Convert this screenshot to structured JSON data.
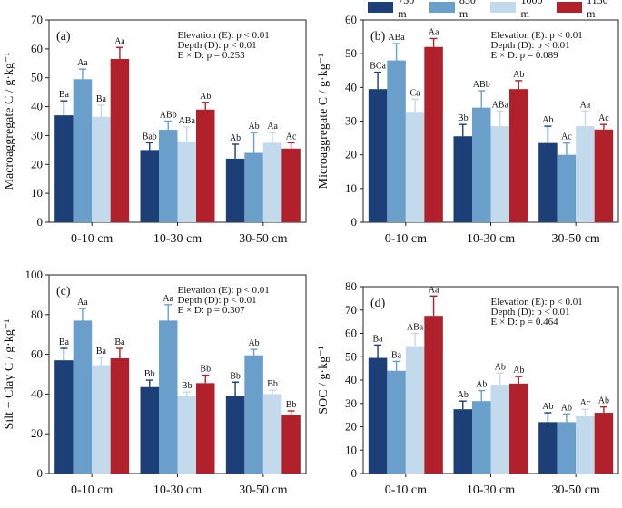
{
  "legend": {
    "items": [
      {
        "label": "750 m",
        "color": "#1b3f76"
      },
      {
        "label": "850 m",
        "color": "#6a9fcc"
      },
      {
        "label": "1000 m",
        "color": "#c3d9ec"
      },
      {
        "label": "1150 m",
        "color": "#b0212b"
      }
    ]
  },
  "chart_data": [
    {
      "type": "bar",
      "panel": "(a)",
      "ylabel": "Macroaggregate C / g·kg⁻¹",
      "categories": [
        "0-10 cm",
        "10-30 cm",
        "30-50 cm"
      ],
      "ylim": [
        0,
        70
      ],
      "yticks": [
        0,
        10,
        20,
        30,
        40,
        50,
        60,
        70
      ],
      "stats": [
        "Elevation (E): p < 0.01",
        "Depth (D): p < 0.01",
        "E × D: p = 0.253"
      ],
      "series": [
        {
          "name": "750 m",
          "values": [
            37,
            25,
            22
          ],
          "errors": [
            5,
            2.5,
            5
          ],
          "labels": [
            "Ba",
            "Bab",
            "Ab"
          ]
        },
        {
          "name": "850 m",
          "values": [
            49.5,
            32,
            24
          ],
          "errors": [
            3.5,
            3,
            7
          ],
          "labels": [
            "Aa",
            "ABb",
            "Ab"
          ]
        },
        {
          "name": "1000 m",
          "values": [
            36.5,
            28,
            27.5
          ],
          "errors": [
            4,
            5,
            3.5
          ],
          "labels": [
            "Ba",
            "ABa",
            "Aa"
          ]
        },
        {
          "name": "1150 m",
          "values": [
            56.5,
            39,
            25.5
          ],
          "errors": [
            4,
            2.5,
            2
          ],
          "labels": [
            "Aa",
            "Ab",
            "Ac"
          ]
        }
      ]
    },
    {
      "type": "bar",
      "panel": "(b)",
      "ylabel": "Microaggregate C / g·kg⁻¹",
      "categories": [
        "0-10 cm",
        "10-30 cm",
        "30-50 cm"
      ],
      "ylim": [
        0,
        60
      ],
      "yticks": [
        0,
        10,
        20,
        30,
        40,
        50,
        60
      ],
      "stats": [
        "Elevation (E): p < 0.01",
        "Depth (D): p < 0.01",
        "E × D: p = 0.089"
      ],
      "series": [
        {
          "name": "750 m",
          "values": [
            39.5,
            25.5,
            23.5
          ],
          "errors": [
            5,
            3.5,
            5
          ],
          "labels": [
            "BCa",
            "Bb",
            "Ab"
          ]
        },
        {
          "name": "850 m",
          "values": [
            48,
            34,
            20
          ],
          "errors": [
            5,
            5,
            3.5
          ],
          "labels": [
            "ABa",
            "ABb",
            "Ac"
          ]
        },
        {
          "name": "1000 m",
          "values": [
            32.5,
            28.5,
            28.5
          ],
          "errors": [
            4,
            4.5,
            4.5
          ],
          "labels": [
            "Ca",
            "ABa",
            "Aa"
          ]
        },
        {
          "name": "1150 m",
          "values": [
            52,
            39.5,
            27.5
          ],
          "errors": [
            2.5,
            2.5,
            1.5
          ],
          "labels": [
            "Aa",
            "Ab",
            "Ac"
          ]
        }
      ]
    },
    {
      "type": "bar",
      "panel": "(c)",
      "ylabel": "Silt + Clay C / g·kg⁻¹",
      "categories": [
        "0-10 cm",
        "10-30 cm",
        "30-50 cm"
      ],
      "ylim": [
        0,
        100
      ],
      "yticks": [
        0,
        20,
        40,
        60,
        80,
        100
      ],
      "stats": [
        "Elevation (E): p < 0.01",
        "Depth (D): p < 0.01",
        "E × D: p = 0.307"
      ],
      "series": [
        {
          "name": "750 m",
          "values": [
            57,
            43.5,
            39
          ],
          "errors": [
            6,
            3.5,
            7
          ],
          "labels": [
            "Ba",
            "Bb",
            "Bb"
          ]
        },
        {
          "name": "850 m",
          "values": [
            77,
            77,
            59.5
          ],
          "errors": [
            6,
            8,
            3
          ],
          "labels": [
            "Aa",
            "Aa",
            "Ab"
          ]
        },
        {
          "name": "1000 m",
          "values": [
            54.5,
            39,
            40
          ],
          "errors": [
            4,
            2,
            2
          ],
          "labels": [
            "Ba",
            "Bb",
            "Bb"
          ]
        },
        {
          "name": "1150 m",
          "values": [
            58,
            45.5,
            29.5
          ],
          "errors": [
            5,
            4,
            2
          ],
          "labels": [
            "Ba",
            "Bb",
            "Bb"
          ]
        }
      ]
    },
    {
      "type": "bar",
      "panel": "(d)",
      "ylabel": "SOC / g·kg⁻¹",
      "categories": [
        "0-10 cm",
        "10-30 cm",
        "30-50 cm"
      ],
      "ylim": [
        0,
        80
      ],
      "yticks": [
        0,
        10,
        20,
        30,
        40,
        50,
        60,
        70,
        80
      ],
      "stats": [
        "Elevation (E): p < 0.01",
        "Depth (D): p < 0.01",
        "E × D: p = 0.464"
      ],
      "series": [
        {
          "name": "750 m",
          "values": [
            49.5,
            27.5,
            22
          ],
          "errors": [
            5.5,
            3.5,
            4
          ],
          "labels": [
            "Ba",
            "Ab",
            "Ab"
          ]
        },
        {
          "name": "850 m",
          "values": [
            44,
            31,
            22
          ],
          "errors": [
            4,
            4.5,
            3.5
          ],
          "labels": [
            "Ba",
            "Ab",
            "Ab"
          ]
        },
        {
          "name": "1000 m",
          "values": [
            54.5,
            38,
            24.5
          ],
          "errors": [
            5.5,
            5,
            3
          ],
          "labels": [
            "ABa",
            "Ab",
            "Ac"
          ]
        },
        {
          "name": "1150 m",
          "values": [
            67.5,
            38.5,
            26
          ],
          "errors": [
            8.5,
            3,
            2.5
          ],
          "labels": [
            "Aa",
            "Ab",
            "Ab"
          ]
        }
      ]
    }
  ]
}
